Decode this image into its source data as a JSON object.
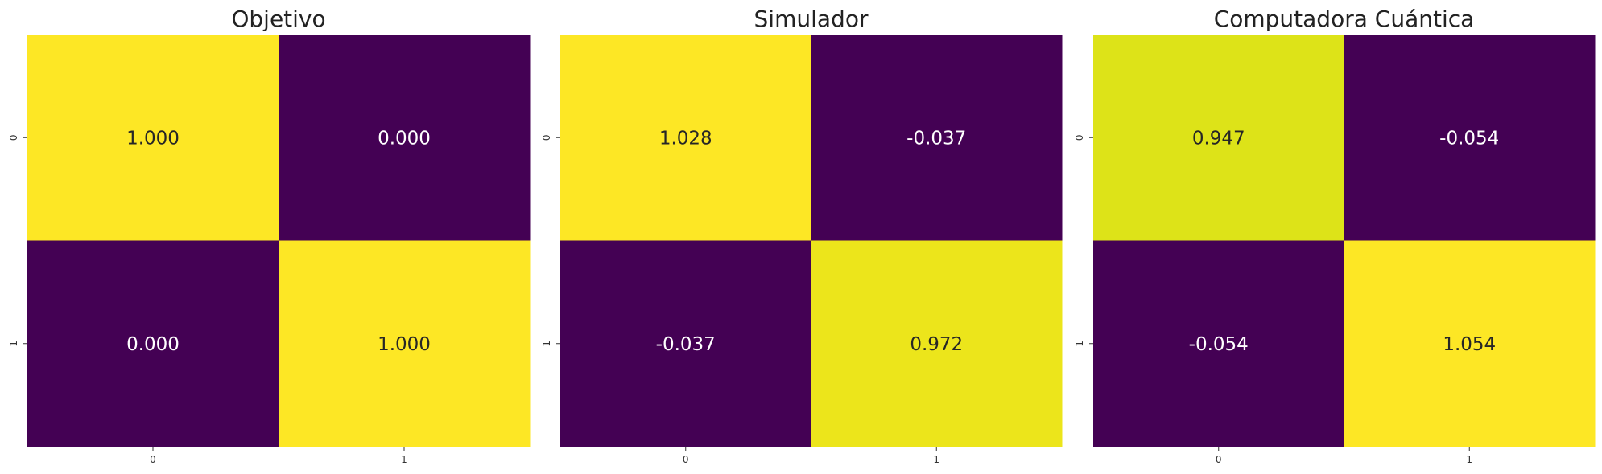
{
  "chart_data": [
    {
      "type": "heatmap",
      "title": "Objetivo",
      "rows": [
        "0",
        "1"
      ],
      "columns": [
        "0",
        "1"
      ],
      "values": [
        [
          1.0,
          0.0
        ],
        [
          0.0,
          1.0
        ]
      ],
      "labels": [
        [
          "1.000",
          "0.000"
        ],
        [
          "0.000",
          "1.000"
        ]
      ],
      "colors": [
        [
          "#fde725",
          "#440154"
        ],
        [
          "#440154",
          "#fde725"
        ]
      ],
      "label_colors": [
        [
          "#262626",
          "#ffffff"
        ],
        [
          "#ffffff",
          "#262626"
        ]
      ],
      "colorbar": false,
      "colormap": "viridis"
    },
    {
      "type": "heatmap",
      "title": "Simulador",
      "rows": [
        "0",
        "1"
      ],
      "columns": [
        "0",
        "1"
      ],
      "values": [
        [
          1.028,
          -0.037
        ],
        [
          -0.037,
          0.972
        ]
      ],
      "labels": [
        [
          "1.028",
          "-0.037"
        ],
        [
          "-0.037",
          "0.972"
        ]
      ],
      "colors": [
        [
          "#fde725",
          "#440154"
        ],
        [
          "#440154",
          "#ece51b"
        ]
      ],
      "label_colors": [
        [
          "#262626",
          "#ffffff"
        ],
        [
          "#ffffff",
          "#262626"
        ]
      ],
      "colorbar": false,
      "colormap": "viridis"
    },
    {
      "type": "heatmap",
      "title": "Computadora Cuántica",
      "rows": [
        "0",
        "1"
      ],
      "columns": [
        "0",
        "1"
      ],
      "values": [
        [
          0.947,
          -0.054
        ],
        [
          -0.054,
          1.054
        ]
      ],
      "labels": [
        [
          "0.947",
          "-0.054"
        ],
        [
          "-0.054",
          "1.054"
        ]
      ],
      "colors": [
        [
          "#dde318",
          "#440154"
        ],
        [
          "#440154",
          "#fde725"
        ]
      ],
      "label_colors": [
        [
          "#262626",
          "#ffffff"
        ],
        [
          "#ffffff",
          "#262626"
        ]
      ],
      "colorbar": false,
      "colormap": "viridis"
    }
  ]
}
